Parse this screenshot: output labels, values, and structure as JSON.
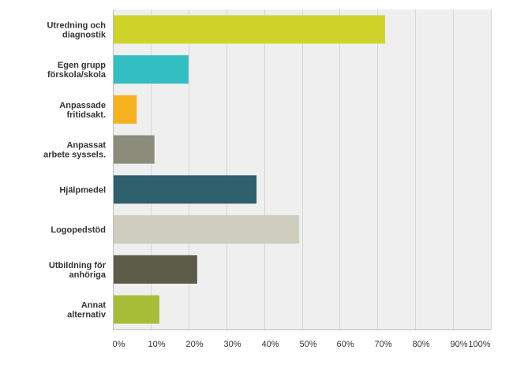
{
  "chart_data": {
    "type": "bar",
    "orientation": "horizontal",
    "categories": [
      [
        "Utredning och",
        "diagnostik"
      ],
      [
        "Egen grupp",
        "förskola/skola"
      ],
      [
        "Anpassade",
        "fritidsakt."
      ],
      [
        "Anpassat",
        "arbete syssels."
      ],
      [
        "Hjälpmedel"
      ],
      [
        "Logopedstöd"
      ],
      [
        "Utbildning för",
        "anhöriga"
      ],
      [
        "Annat",
        "alternativ"
      ]
    ],
    "values": [
      72,
      20,
      6.3,
      11,
      38,
      49.3,
      22.3,
      12.3
    ],
    "colors": [
      "#cfd329",
      "#33bec2",
      "#f6b11f",
      "#8b8c79",
      "#2e5f6d",
      "#cfcebe",
      "#5b5b48",
      "#a7bd38"
    ],
    "xlim": [
      0,
      100
    ],
    "x_ticks": [
      "0%",
      "10%",
      "20%",
      "30%",
      "40%",
      "50%",
      "60%",
      "70%",
      "80%",
      "90%",
      "100%"
    ],
    "grid": true,
    "plot_background": "#efefef",
    "title": "",
    "xlabel": "",
    "ylabel": ""
  }
}
